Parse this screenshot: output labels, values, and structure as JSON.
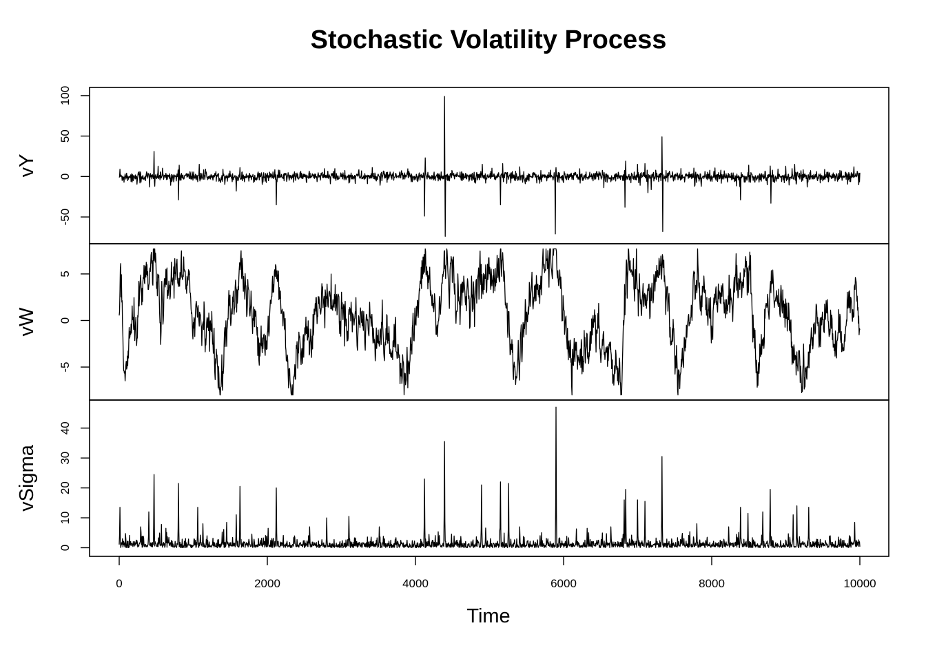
{
  "chart_data": {
    "type": "line",
    "title": "Stochastic Volatility Process",
    "xlabel": "Time",
    "xlim": [
      0,
      10000
    ],
    "x_ticks": [
      0,
      2000,
      4000,
      6000,
      8000,
      10000
    ],
    "panels": [
      {
        "ylabel": "vY",
        "ylim": [
          -78,
          105
        ],
        "y_ticks": [
          -50,
          0,
          50,
          100
        ],
        "spikes": [
          {
            "x": 10,
            "y": -19
          },
          {
            "x": 10,
            "y": 9
          },
          {
            "x": 410,
            "y": -13
          },
          {
            "x": 470,
            "y": 31
          },
          {
            "x": 480,
            "y": -12
          },
          {
            "x": 800,
            "y": -29
          },
          {
            "x": 810,
            "y": 14
          },
          {
            "x": 1080,
            "y": 15
          },
          {
            "x": 1400,
            "y": 9
          },
          {
            "x": 1580,
            "y": -18
          },
          {
            "x": 1630,
            "y": 11
          },
          {
            "x": 2120,
            "y": -35
          },
          {
            "x": 2850,
            "y": -9
          },
          {
            "x": 3100,
            "y": -8
          },
          {
            "x": 4120,
            "y": -49
          },
          {
            "x": 4130,
            "y": 23
          },
          {
            "x": 4390,
            "y": 99
          },
          {
            "x": 4400,
            "y": -74
          },
          {
            "x": 4900,
            "y": 15
          },
          {
            "x": 5150,
            "y": -35
          },
          {
            "x": 5180,
            "y": 16
          },
          {
            "x": 5410,
            "y": 12
          },
          {
            "x": 5890,
            "y": -71
          },
          {
            "x": 5900,
            "y": 11
          },
          {
            "x": 6830,
            "y": -38
          },
          {
            "x": 6840,
            "y": 19
          },
          {
            "x": 7000,
            "y": 15
          },
          {
            "x": 7100,
            "y": 16
          },
          {
            "x": 7140,
            "y": -20
          },
          {
            "x": 7330,
            "y": 49
          },
          {
            "x": 7340,
            "y": -68
          },
          {
            "x": 7770,
            "y": -12
          },
          {
            "x": 8390,
            "y": -29
          },
          {
            "x": 8500,
            "y": 14
          },
          {
            "x": 8800,
            "y": -33
          },
          {
            "x": 8790,
            "y": 13
          },
          {
            "x": 9120,
            "y": 15
          },
          {
            "x": 9290,
            "y": -13
          },
          {
            "x": 9920,
            "y": 12
          }
        ]
      },
      {
        "ylabel": "vW",
        "ylim": [
          -8.1,
          7.8
        ],
        "y_ticks": [
          -5,
          0,
          5
        ],
        "anchors": [
          {
            "x": 0,
            "y": 0
          },
          {
            "x": 20,
            "y": 5.2
          },
          {
            "x": 60,
            "y": -6.4
          },
          {
            "x": 150,
            "y": -2
          },
          {
            "x": 300,
            "y": 2
          },
          {
            "x": 470,
            "y": 6.3
          },
          {
            "x": 560,
            "y": 1
          },
          {
            "x": 800,
            "y": 6
          },
          {
            "x": 1000,
            "y": 1
          },
          {
            "x": 1200,
            "y": 0
          },
          {
            "x": 1380,
            "y": -6.8
          },
          {
            "x": 1450,
            "y": -1
          },
          {
            "x": 1640,
            "y": 5.8
          },
          {
            "x": 1800,
            "y": 0
          },
          {
            "x": 2000,
            "y": -2
          },
          {
            "x": 2120,
            "y": 5.8
          },
          {
            "x": 2250,
            "y": -2
          },
          {
            "x": 2340,
            "y": -8
          },
          {
            "x": 2420,
            "y": -3
          },
          {
            "x": 2800,
            "y": 3
          },
          {
            "x": 3000,
            "y": 1
          },
          {
            "x": 3500,
            "y": -1
          },
          {
            "x": 3900,
            "y": -5
          },
          {
            "x": 4130,
            "y": 6.3
          },
          {
            "x": 4300,
            "y": -1
          },
          {
            "x": 4400,
            "y": 7
          },
          {
            "x": 4600,
            "y": 2
          },
          {
            "x": 5170,
            "y": 6
          },
          {
            "x": 5340,
            "y": -6.3
          },
          {
            "x": 5500,
            "y": 1
          },
          {
            "x": 5900,
            "y": 7.8
          },
          {
            "x": 6050,
            "y": -3
          },
          {
            "x": 6120,
            "y": -5.4
          },
          {
            "x": 6400,
            "y": -1
          },
          {
            "x": 6780,
            "y": -6.3
          },
          {
            "x": 6850,
            "y": 5.8
          },
          {
            "x": 7100,
            "y": 1
          },
          {
            "x": 7330,
            "y": 6.7
          },
          {
            "x": 7450,
            "y": -1
          },
          {
            "x": 7570,
            "y": -5.8
          },
          {
            "x": 7800,
            "y": 4
          },
          {
            "x": 8000,
            "y": 0
          },
          {
            "x": 8500,
            "y": 5.5
          },
          {
            "x": 8620,
            "y": -5.8
          },
          {
            "x": 8800,
            "y": 4.5
          },
          {
            "x": 9000,
            "y": 0
          },
          {
            "x": 9250,
            "y": -5.7
          },
          {
            "x": 9500,
            "y": 2
          },
          {
            "x": 9700,
            "y": -3
          },
          {
            "x": 9930,
            "y": 4.3
          },
          {
            "x": 10000,
            "y": -1.2
          }
        ]
      },
      {
        "ylabel": "vSigma",
        "ylim": [
          -1.5,
          48
        ],
        "y_ticks": [
          0,
          10,
          20,
          30,
          40
        ],
        "spikes": [
          {
            "x": 10,
            "y": 13.5
          },
          {
            "x": 290,
            "y": 7
          },
          {
            "x": 400,
            "y": 12
          },
          {
            "x": 470,
            "y": 24.5
          },
          {
            "x": 630,
            "y": 6.5
          },
          {
            "x": 800,
            "y": 21.5
          },
          {
            "x": 1060,
            "y": 13.5
          },
          {
            "x": 1130,
            "y": 8
          },
          {
            "x": 1450,
            "y": 8.5
          },
          {
            "x": 1580,
            "y": 11
          },
          {
            "x": 1630,
            "y": 20.5
          },
          {
            "x": 2010,
            "y": 6.5
          },
          {
            "x": 2120,
            "y": 20
          },
          {
            "x": 2570,
            "y": 7
          },
          {
            "x": 2800,
            "y": 10
          },
          {
            "x": 3100,
            "y": 10.5
          },
          {
            "x": 3510,
            "y": 7
          },
          {
            "x": 4120,
            "y": 23
          },
          {
            "x": 4390,
            "y": 35.5
          },
          {
            "x": 4890,
            "y": 21
          },
          {
            "x": 5150,
            "y": 22
          },
          {
            "x": 5260,
            "y": 21.5
          },
          {
            "x": 5410,
            "y": 7
          },
          {
            "x": 5900,
            "y": 47
          },
          {
            "x": 6320,
            "y": 6.5
          },
          {
            "x": 6640,
            "y": 7
          },
          {
            "x": 6820,
            "y": 16
          },
          {
            "x": 6840,
            "y": 19.5
          },
          {
            "x": 7000,
            "y": 16
          },
          {
            "x": 7100,
            "y": 15.5
          },
          {
            "x": 7330,
            "y": 30.5
          },
          {
            "x": 7800,
            "y": 8
          },
          {
            "x": 8230,
            "y": 7
          },
          {
            "x": 8390,
            "y": 13.5
          },
          {
            "x": 8490,
            "y": 11.5
          },
          {
            "x": 8690,
            "y": 12
          },
          {
            "x": 8790,
            "y": 19.5
          },
          {
            "x": 9100,
            "y": 11
          },
          {
            "x": 9150,
            "y": 14
          },
          {
            "x": 9310,
            "y": 13.5
          },
          {
            "x": 9600,
            "y": 4
          },
          {
            "x": 9930,
            "y": 8.5
          }
        ]
      }
    ]
  }
}
